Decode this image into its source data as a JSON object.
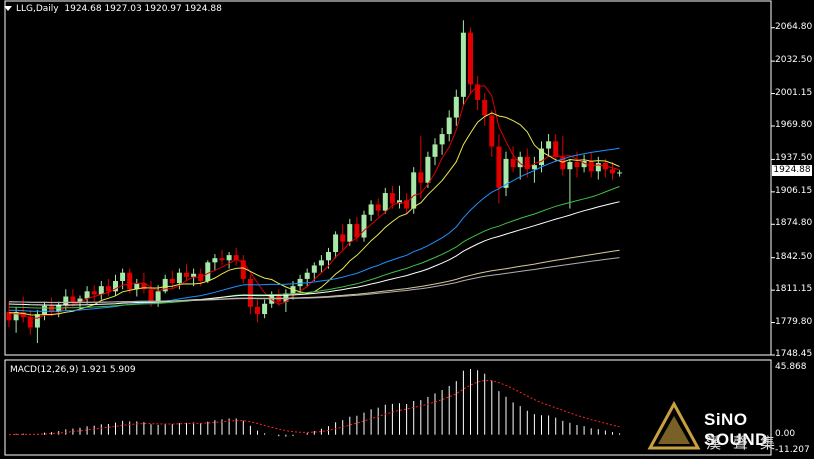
{
  "header": {
    "symbol": "LLG,Daily",
    "ohlc": "1924.68 1927.03 1920.97 1924.88"
  },
  "macd": {
    "label": "MACD(12,26,9) 1.921 5.909",
    "axis_labels": [
      "45.868",
      "0.00",
      "-11.207"
    ]
  },
  "price_axis": {
    "labels": [
      "2064.80",
      "2032.50",
      "2001.15",
      "1969.80",
      "1937.50",
      "1906.15",
      "1874.80",
      "1842.50",
      "1811.15",
      "1779.80",
      "1748.45"
    ],
    "current": "1924.88"
  },
  "watermark": {
    "brand": "SiNO SOUND",
    "chinese": "漢聲集"
  },
  "colors": {
    "bull": "#a8e8a8",
    "bear": "#e00000",
    "ma_red": "#e00000",
    "ma_yellow": "#e8e850",
    "ma_blue": "#1e90ff",
    "ma_green": "#40c040",
    "ma_white": "#ffffff",
    "ma_tan": "#d8c8a0",
    "ma_grey": "#b0b0b0",
    "signal": "#ff2020",
    "hist": "#ffffff"
  },
  "chart_data": {
    "type": "candlestick",
    "title": "LLG,Daily",
    "ylim": [
      1748.45,
      2080
    ],
    "candles": [
      [
        1790,
        1800,
        1775,
        1782
      ],
      [
        1782,
        1795,
        1770,
        1790
      ],
      [
        1790,
        1805,
        1780,
        1785
      ],
      [
        1785,
        1792,
        1768,
        1775
      ],
      [
        1775,
        1792,
        1760,
        1788
      ],
      [
        1788,
        1800,
        1782,
        1796
      ],
      [
        1796,
        1804,
        1786,
        1790
      ],
      [
        1790,
        1800,
        1785,
        1797
      ],
      [
        1797,
        1812,
        1792,
        1805
      ],
      [
        1805,
        1812,
        1795,
        1800
      ],
      [
        1800,
        1806,
        1793,
        1803
      ],
      [
        1803,
        1815,
        1798,
        1810
      ],
      [
        1810,
        1816,
        1800,
        1807
      ],
      [
        1807,
        1820,
        1802,
        1815
      ],
      [
        1815,
        1822,
        1805,
        1810
      ],
      [
        1810,
        1826,
        1806,
        1820
      ],
      [
        1820,
        1832,
        1812,
        1828
      ],
      [
        1828,
        1832,
        1808,
        1812
      ],
      [
        1812,
        1822,
        1805,
        1818
      ],
      [
        1818,
        1828,
        1808,
        1812
      ],
      [
        1812,
        1820,
        1795,
        1800
      ],
      [
        1800,
        1816,
        1795,
        1810
      ],
      [
        1810,
        1826,
        1808,
        1822
      ],
      [
        1822,
        1830,
        1812,
        1818
      ],
      [
        1818,
        1832,
        1812,
        1828
      ],
      [
        1828,
        1836,
        1820,
        1824
      ],
      [
        1824,
        1832,
        1815,
        1827
      ],
      [
        1827,
        1832,
        1815,
        1820
      ],
      [
        1820,
        1840,
        1818,
        1838
      ],
      [
        1838,
        1846,
        1830,
        1842
      ],
      [
        1842,
        1850,
        1835,
        1840
      ],
      [
        1840,
        1848,
        1832,
        1845
      ],
      [
        1845,
        1852,
        1835,
        1840
      ],
      [
        1840,
        1845,
        1818,
        1822
      ],
      [
        1822,
        1826,
        1788,
        1795
      ],
      [
        1795,
        1802,
        1780,
        1788
      ],
      [
        1788,
        1802,
        1784,
        1798
      ],
      [
        1798,
        1810,
        1794,
        1806
      ],
      [
        1806,
        1812,
        1796,
        1800
      ],
      [
        1800,
        1812,
        1790,
        1808
      ],
      [
        1808,
        1820,
        1802,
        1815
      ],
      [
        1815,
        1826,
        1808,
        1822
      ],
      [
        1822,
        1832,
        1815,
        1828
      ],
      [
        1828,
        1838,
        1820,
        1835
      ],
      [
        1835,
        1845,
        1828,
        1840
      ],
      [
        1840,
        1852,
        1832,
        1848
      ],
      [
        1848,
        1868,
        1842,
        1865
      ],
      [
        1865,
        1875,
        1850,
        1858
      ],
      [
        1858,
        1880,
        1854,
        1875
      ],
      [
        1875,
        1882,
        1858,
        1862
      ],
      [
        1862,
        1888,
        1858,
        1884
      ],
      [
        1884,
        1898,
        1878,
        1894
      ],
      [
        1894,
        1900,
        1882,
        1888
      ],
      [
        1888,
        1910,
        1885,
        1905
      ],
      [
        1905,
        1912,
        1890,
        1895
      ],
      [
        1895,
        1912,
        1890,
        1898
      ],
      [
        1898,
        1905,
        1885,
        1890
      ],
      [
        1890,
        1930,
        1885,
        1925
      ],
      [
        1925,
        1960,
        1900,
        1915
      ],
      [
        1915,
        1945,
        1910,
        1940
      ],
      [
        1940,
        1958,
        1932,
        1952
      ],
      [
        1952,
        1968,
        1942,
        1962
      ],
      [
        1962,
        1985,
        1955,
        1978
      ],
      [
        1978,
        2005,
        1970,
        1998
      ],
      [
        1998,
        2072,
        1990,
        2060
      ],
      [
        2060,
        2065,
        2000,
        2010
      ],
      [
        2010,
        2018,
        1985,
        1995
      ],
      [
        1995,
        2002,
        1970,
        1980
      ],
      [
        1980,
        1985,
        1940,
        1950
      ],
      [
        1950,
        1962,
        1895,
        1910
      ],
      [
        1910,
        1945,
        1902,
        1938
      ],
      [
        1938,
        1950,
        1925,
        1930
      ],
      [
        1930,
        1945,
        1918,
        1940
      ],
      [
        1940,
        1948,
        1920,
        1928
      ],
      [
        1928,
        1940,
        1915,
        1932
      ],
      [
        1932,
        1955,
        1925,
        1948
      ],
      [
        1948,
        1962,
        1940,
        1955
      ],
      [
        1955,
        1962,
        1935,
        1940
      ],
      [
        1940,
        1960,
        1922,
        1928
      ],
      [
        1928,
        1938,
        1890,
        1935
      ],
      [
        1935,
        1945,
        1920,
        1930
      ],
      [
        1930,
        1942,
        1925,
        1936
      ],
      [
        1936,
        1945,
        1920,
        1926
      ],
      [
        1926,
        1940,
        1918,
        1934
      ],
      [
        1934,
        1938,
        1920,
        1928
      ],
      [
        1928,
        1935,
        1918,
        1924
      ],
      [
        1924.68,
        1927.03,
        1920.97,
        1924.88
      ]
    ]
  }
}
